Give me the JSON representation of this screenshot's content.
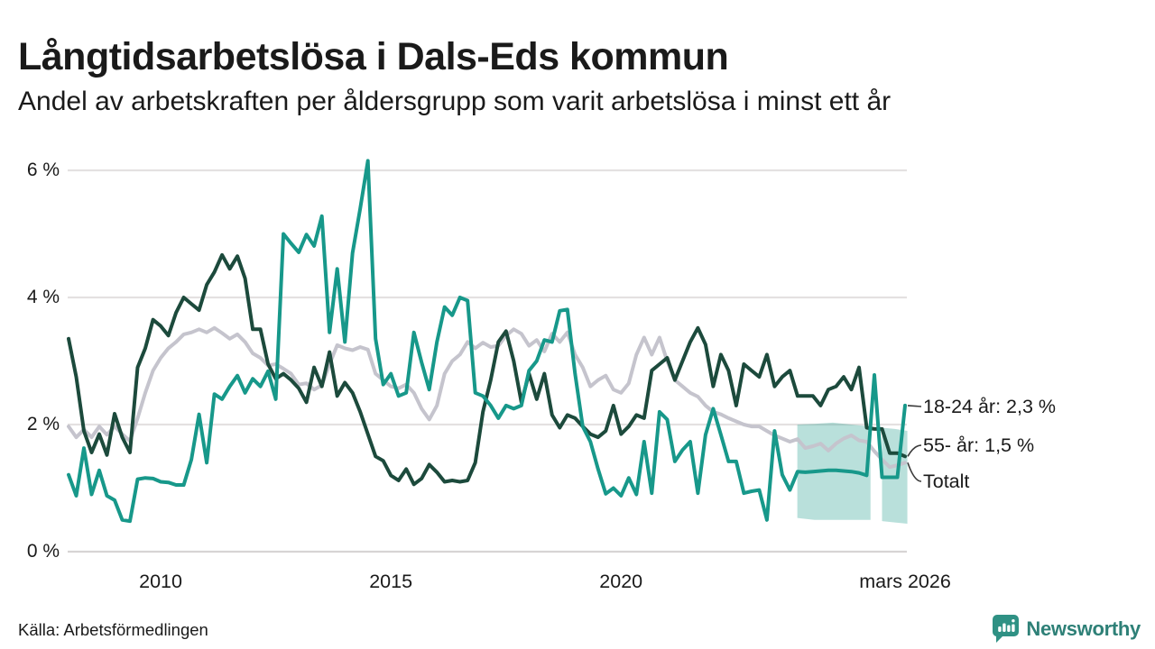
{
  "header": {
    "title": "Långtidsarbetslösa i Dals-Eds kommun",
    "subtitle": "Andel av arbetskraften per åldersgrupp som varit arbetslösa i minst ett år"
  },
  "footer": {
    "source": "Källa: Arbetsförmedlingen",
    "brand": "Newsworthy"
  },
  "colors": {
    "teal": "#17988A",
    "dark_green": "#1C4A3C",
    "gray": "#C5C4CD",
    "band_fill": "rgba(23,152,136,0.30)",
    "grid": "#E4E1E1",
    "grid_zero": "#D7D4D4",
    "annotation_line": "#3A3A3A",
    "brand_bubble": "#2F9184",
    "brand_text": "#2E8077"
  },
  "chart_data": {
    "type": "line",
    "title": "Långtidsarbetslösa i Dals-Eds kommun",
    "subtitle": "Andel av arbetskraften per åldersgrupp som varit arbetslösa i minst ett år",
    "unit": "%",
    "xlabel": "",
    "ylabel": "",
    "x_start": 2008.0,
    "x_end": 2026.17,
    "ylim": [
      0,
      6.3
    ],
    "grid": "horizontal",
    "legend_position": "right-annotations",
    "y_ticks": [
      {
        "value": 6,
        "label": "6 %"
      },
      {
        "value": 4,
        "label": "4 %"
      },
      {
        "value": 2,
        "label": "2 %"
      },
      {
        "value": 0,
        "label": "0 %"
      }
    ],
    "x_ticks": [
      {
        "year": 2010,
        "label": "2010"
      },
      {
        "year": 2015,
        "label": "2015"
      },
      {
        "year": 2020,
        "label": "2020"
      },
      {
        "year": 2026.17,
        "label": "mars 2026"
      }
    ],
    "series": [
      {
        "name": "18-24 år",
        "color": "#17988A",
        "values": [
          1.21,
          0.88,
          1.63,
          0.9,
          1.28,
          0.88,
          0.81,
          0.5,
          0.48,
          1.14,
          1.16,
          1.15,
          1.1,
          1.09,
          1.05,
          1.05,
          1.45,
          2.16,
          1.4,
          2.48,
          2.4,
          2.6,
          2.77,
          2.5,
          2.72,
          2.6,
          2.84,
          2.4,
          5.0,
          4.85,
          4.71,
          4.99,
          4.81,
          5.28,
          3.45,
          4.45,
          3.3,
          4.7,
          5.4,
          6.15,
          3.35,
          2.63,
          2.8,
          2.45,
          2.5,
          3.45,
          2.98,
          2.55,
          3.3,
          3.85,
          3.72,
          4.0,
          3.95,
          2.5,
          2.45,
          2.3,
          2.1,
          2.3,
          2.25,
          2.3,
          2.85,
          3.0,
          3.33,
          3.3,
          3.79,
          3.81,
          2.8,
          1.97,
          1.73,
          1.3,
          0.91,
          1.0,
          0.88,
          1.16,
          0.9,
          1.73,
          0.92,
          2.2,
          2.08,
          1.42,
          1.6,
          1.73,
          0.92,
          1.84,
          2.25,
          1.84,
          1.42,
          1.42,
          0.92,
          0.95,
          0.97,
          0.5,
          1.9,
          1.21,
          0.97,
          1.26,
          1.25,
          1.26,
          1.27,
          1.28,
          1.28,
          1.27,
          1.26,
          1.24,
          1.2,
          2.78,
          1.17,
          1.17,
          1.17,
          2.3
        ]
      },
      {
        "name": "55- år",
        "color": "#1C4A3C",
        "values": [
          3.35,
          2.75,
          1.9,
          1.56,
          1.85,
          1.52,
          2.17,
          1.8,
          1.56,
          2.9,
          3.2,
          3.65,
          3.55,
          3.4,
          3.76,
          4.0,
          3.9,
          3.8,
          4.2,
          4.4,
          4.67,
          4.45,
          4.65,
          4.3,
          3.5,
          3.5,
          2.95,
          2.72,
          2.8,
          2.7,
          2.57,
          2.35,
          2.9,
          2.6,
          3.14,
          2.45,
          2.66,
          2.5,
          2.2,
          1.85,
          1.5,
          1.43,
          1.2,
          1.12,
          1.3,
          1.06,
          1.15,
          1.37,
          1.25,
          1.1,
          1.12,
          1.1,
          1.12,
          1.4,
          2.2,
          2.7,
          3.3,
          3.47,
          3.0,
          2.35,
          2.8,
          2.4,
          2.8,
          2.15,
          1.95,
          2.15,
          2.1,
          1.97,
          1.85,
          1.8,
          1.9,
          2.3,
          1.85,
          1.97,
          2.15,
          2.1,
          2.85,
          2.95,
          3.05,
          2.7,
          3.0,
          3.3,
          3.52,
          3.26,
          2.6,
          3.1,
          2.85,
          2.3,
          2.95,
          2.85,
          2.75,
          3.1,
          2.6,
          2.75,
          2.85,
          2.45,
          2.45,
          2.45,
          2.3,
          2.55,
          2.6,
          2.75,
          2.55,
          2.9,
          1.95,
          1.93,
          1.93,
          1.55,
          1.55,
          1.5
        ]
      },
      {
        "name": "Totalt",
        "color": "#C5C4CD",
        "values": [
          1.97,
          1.8,
          1.92,
          1.8,
          1.97,
          1.84,
          1.97,
          1.85,
          1.74,
          2.1,
          2.5,
          2.85,
          3.05,
          3.2,
          3.3,
          3.42,
          3.45,
          3.5,
          3.45,
          3.52,
          3.44,
          3.35,
          3.42,
          3.3,
          3.12,
          3.05,
          2.93,
          2.95,
          2.88,
          2.8,
          2.63,
          2.65,
          2.55,
          2.62,
          2.95,
          3.25,
          3.2,
          3.17,
          3.22,
          3.18,
          2.8,
          2.7,
          2.6,
          2.57,
          2.63,
          2.5,
          2.25,
          2.08,
          2.3,
          2.8,
          3.0,
          3.1,
          3.3,
          3.2,
          3.29,
          3.22,
          3.24,
          3.4,
          3.5,
          3.43,
          3.24,
          3.33,
          3.15,
          3.43,
          3.3,
          3.45,
          3.1,
          2.9,
          2.6,
          2.7,
          2.77,
          2.55,
          2.5,
          2.65,
          3.1,
          3.37,
          3.1,
          3.37,
          3.0,
          2.7,
          2.6,
          2.5,
          2.44,
          2.3,
          2.2,
          2.16,
          2.1,
          2.05,
          2.0,
          1.97,
          1.97,
          1.9,
          1.83,
          1.78,
          1.73,
          1.77,
          1.63,
          1.66,
          1.7,
          1.59,
          1.7,
          1.78,
          1.83,
          1.75,
          1.73,
          1.58,
          1.45,
          1.33,
          1.36,
          1.4
        ]
      }
    ],
    "forecast_band": {
      "series": "18-24 år",
      "fill": "rgba(23,152,136,0.30)",
      "segments": [
        {
          "x": [
            2023.83,
            2024.2,
            2024.6,
            2025.0,
            2025.42
          ],
          "upper": [
            2.0,
            2.01,
            2.03,
            2.0,
            1.97
          ],
          "lower": [
            0.53,
            0.5,
            0.5,
            0.5,
            0.5
          ]
        },
        {
          "x": [
            2025.67,
            2025.95,
            2026.22
          ],
          "upper": [
            1.95,
            1.93,
            1.9
          ],
          "lower": [
            0.48,
            0.46,
            0.44
          ]
        }
      ]
    },
    "annotations": [
      {
        "label": "18-24 år: 2,3 %",
        "end_value": 2.3
      },
      {
        "label": "55- år: 1,5 %",
        "end_value": 1.5
      },
      {
        "label": "Totalt",
        "end_value": 1.4
      }
    ]
  }
}
